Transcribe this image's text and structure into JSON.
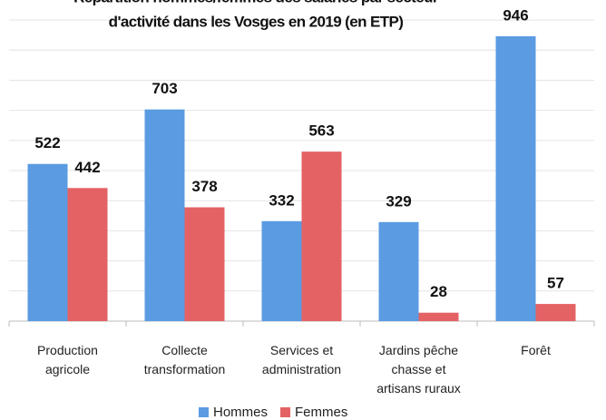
{
  "chart_data": {
    "type": "bar",
    "title": [
      "Répartition hommes/femmes des salariés par secteur",
      "d'activité dans les Vosges en 2019  (en ETP)"
    ],
    "categories": [
      "Production\nagricole",
      "Collecte\ntransformation",
      "Services et\nadministration",
      "Jardins pêche\nchasse et\nartisans ruraux",
      "Forêt"
    ],
    "series": [
      {
        "name": "Hommes",
        "color": "#5a9be2",
        "values": [
          522,
          703,
          332,
          329,
          946
        ]
      },
      {
        "name": "Femmes",
        "color": "#e46264",
        "values": [
          442,
          378,
          563,
          28,
          57
        ]
      }
    ],
    "ylim": [
      0,
      1000
    ],
    "yticks": [
      0,
      100,
      200,
      300,
      400,
      500,
      600,
      700,
      800,
      900,
      1000
    ],
    "grid": true,
    "legend": "bottom"
  }
}
